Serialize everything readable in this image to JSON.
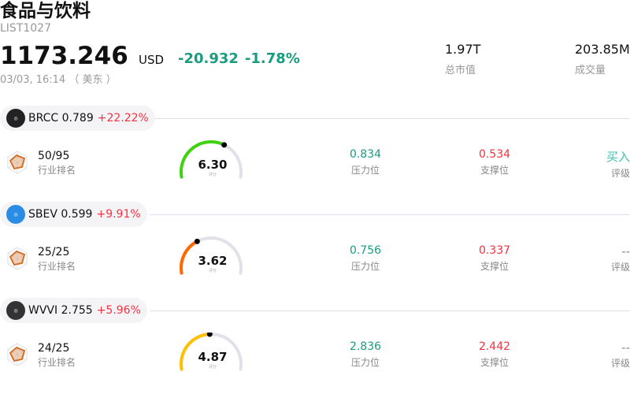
{
  "header": {
    "title": "食品与饮料",
    "code": "LIST1027",
    "price": "1173.246",
    "currency": "USD",
    "change": "-20.932",
    "change_pct": "-1.78%",
    "time": "03/03, 16:14 （ 美东 ）"
  },
  "stats": [
    {
      "value": "1.97T",
      "label": "总市值"
    },
    {
      "value": "203.85M",
      "label": "成交量"
    }
  ],
  "colors": {
    "down": "#1a9c7f",
    "up": "#f5323f",
    "buy": "#3ec1b0"
  },
  "labels": {
    "rank": "行业排名",
    "score": "评分",
    "resistance": "压力位",
    "support": "支撑位",
    "rating": "评级"
  },
  "stocks": [
    {
      "ticker": "BRCC",
      "price": "0.789",
      "pct": "+22.22%",
      "rank": "50/95",
      "score": "6.30",
      "score_value": 6.3,
      "gauge_color": "#3fd30f",
      "resistance": "0.834",
      "support": "0.534",
      "rating": "买入",
      "logo_color": "#222"
    },
    {
      "ticker": "SBEV",
      "price": "0.599",
      "pct": "+9.91%",
      "rank": "25/25",
      "score": "3.62",
      "score_value": 3.62,
      "gauge_color": "#ff6a00",
      "resistance": "0.756",
      "support": "0.337",
      "rating": "--",
      "logo_color": "#2b8ce6"
    },
    {
      "ticker": "WVVI",
      "price": "2.755",
      "pct": "+5.96%",
      "rank": "24/25",
      "score": "4.87",
      "score_value": 4.87,
      "gauge_color": "#ffc000",
      "resistance": "2.836",
      "support": "2.442",
      "rating": "--",
      "logo_color": "#333"
    }
  ]
}
